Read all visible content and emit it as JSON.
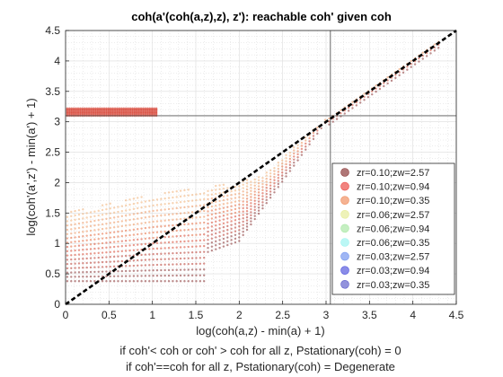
{
  "chart_data": {
    "type": "scatter",
    "title": "coh(a'(coh(a,z),z), z'): reachable coh' given coh",
    "xlabel": "log(coh(a,z) - min(a) + 1)",
    "ylabel": "log(coh'(a',z') - min(a') + 1)",
    "xlim": [
      0,
      4.5
    ],
    "ylim": [
      0,
      4.5
    ],
    "xticks": [
      0,
      0.5,
      1,
      1.5,
      2,
      2.5,
      3,
      3.5,
      4,
      4.5
    ],
    "yticks": [
      0,
      0.5,
      1,
      1.5,
      2,
      2.5,
      3,
      3.5,
      4,
      4.5
    ],
    "xtick_labels": [
      "0",
      "0.5",
      "1",
      "1.5",
      "2",
      "2.5",
      "3",
      "3.5",
      "4",
      "4.5"
    ],
    "ytick_labels": [
      "0",
      "0.5",
      "1",
      "1.5",
      "2",
      "2.5",
      "3",
      "3.5",
      "4",
      "4.5"
    ],
    "grid": true,
    "minor_grid": true,
    "legend_placement": "lower-right",
    "reference_lines": {
      "diagonal_45": {
        "from": [
          0,
          0
        ],
        "to": [
          4.5,
          4.5
        ],
        "style": "dashed",
        "color": "#000000"
      },
      "vertical_x": 3.05,
      "horizontal_y": 3.1
    },
    "series": [
      {
        "name": "zr=0.10;zw=2.57",
        "color": "#7a1a1a"
      },
      {
        "name": "zr=0.10;zw=0.94",
        "color": "#e8302a"
      },
      {
        "name": "zr=0.10;zw=0.35",
        "color": "#ee7f4a"
      },
      {
        "name": "zr=0.06;zw=2.57",
        "color": "#e2ea8a"
      },
      {
        "name": "zr=0.06;zw=0.94",
        "color": "#9fe59a"
      },
      {
        "name": "zr=0.06;zw=0.35",
        "color": "#8ef2ee"
      },
      {
        "name": "zr=0.03;zw=2.57",
        "color": "#5f86ec"
      },
      {
        "name": "zr=0.03;zw=0.94",
        "color": "#3c3fd8"
      },
      {
        "name": "zr=0.03;zw=0.35",
        "color": "#4a4ac4"
      }
    ],
    "point_clouds": [
      {
        "description_of_region": "isolated band",
        "x_range": [
          0.02,
          1.05
        ],
        "y_range": [
          3.1,
          3.22
        ],
        "color": "#d12a1a"
      },
      {
        "description_of_region": "main fan",
        "x_range": [
          0.02,
          4.3
        ],
        "y_low_at_x0": 0.38,
        "y_high_at_x0": 1.5,
        "converges_to_diagonal_at": 3.0,
        "color": "#b42a18"
      }
    ]
  },
  "footer": {
    "line1": "if coh'< coh or coh' > coh for all z, Pstationary(coh) = 0",
    "line2": "if coh'==coh for all z, Pstationary(coh) = Degenerate"
  }
}
